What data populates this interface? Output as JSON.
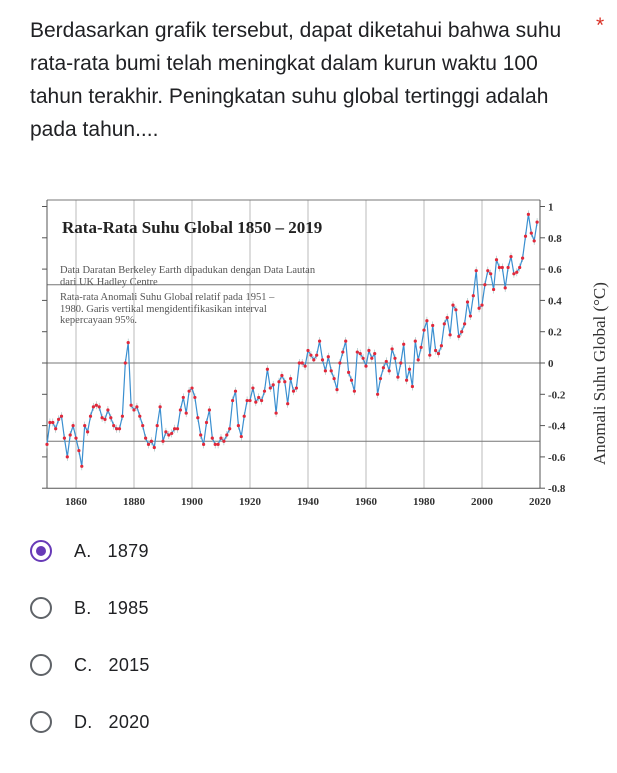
{
  "question": {
    "text": "Berdasarkan grafik tersebut, dapat diketahui bahwa suhu rata-rata bumi telah meningkat dalam kurun waktu 100 tahun terakhir. Peningkatan suhu global tertinggi adalah pada tahun....",
    "required_mark": "*"
  },
  "options": [
    {
      "label": "A.   1879",
      "selected": true
    },
    {
      "label": "B.   1985",
      "selected": false
    },
    {
      "label": "C.   2015",
      "selected": false
    },
    {
      "label": "D.   2020",
      "selected": false
    }
  ],
  "colors": {
    "accent": "#673ab7",
    "line": "#3a8fd0",
    "marker": "#e0283a",
    "required": "#d93025"
  },
  "chart_data": {
    "type": "line",
    "title": "Rata-Rata Suhu Global 1850 – 2019",
    "subtitle": "Data Daratan Berkeley Earth dipadukan dengan Data Lautan dari UK Hadley Centre",
    "note": "Rata-rata Anomali Suhu Global relatif pada 1951 – 1980. Garis vertikal mengidentifikasikan interval kepercayaan 95%.",
    "ylabel": "Anomali Suhu Global (°C)",
    "xlabel": "",
    "xlim": [
      1850,
      2020
    ],
    "ylim": [
      -0.8,
      1
    ],
    "xticks": [
      "1860",
      "1880",
      "1900",
      "1920",
      "1940",
      "1960",
      "1980",
      "2000",
      "2020"
    ],
    "yticks": [
      "1",
      "0.8",
      "0.6",
      "0.4",
      "0.2",
      "0",
      "-0.2",
      "-0.4",
      "-0.6",
      "-0.8"
    ],
    "x_start": 1850,
    "values": [
      -0.52,
      -0.38,
      -0.38,
      -0.42,
      -0.36,
      -0.34,
      -0.48,
      -0.6,
      -0.46,
      -0.4,
      -0.48,
      -0.56,
      -0.66,
      -0.4,
      -0.44,
      -0.34,
      -0.28,
      -0.27,
      -0.28,
      -0.35,
      -0.36,
      -0.3,
      -0.35,
      -0.4,
      -0.42,
      -0.42,
      -0.34,
      0.0,
      0.13,
      -0.27,
      -0.3,
      -0.28,
      -0.34,
      -0.4,
      -0.48,
      -0.52,
      -0.5,
      -0.54,
      -0.4,
      -0.28,
      -0.5,
      -0.44,
      -0.46,
      -0.45,
      -0.42,
      -0.42,
      -0.3,
      -0.22,
      -0.32,
      -0.18,
      -0.16,
      -0.22,
      -0.35,
      -0.46,
      -0.52,
      -0.38,
      -0.3,
      -0.48,
      -0.52,
      -0.52,
      -0.48,
      -0.5,
      -0.46,
      -0.42,
      -0.24,
      -0.18,
      -0.4,
      -0.47,
      -0.34,
      -0.24,
      -0.24,
      -0.16,
      -0.25,
      -0.22,
      -0.24,
      -0.18,
      -0.04,
      -0.16,
      -0.14,
      -0.32,
      -0.12,
      -0.08,
      -0.12,
      -0.26,
      -0.1,
      -0.18,
      -0.16,
      0.0,
      0.0,
      -0.02,
      0.08,
      0.05,
      0.02,
      0.05,
      0.14,
      0.02,
      -0.05,
      0.04,
      -0.05,
      -0.1,
      -0.17,
      0.0,
      0.07,
      0.14,
      -0.06,
      -0.11,
      -0.18,
      0.07,
      0.06,
      0.03,
      -0.02,
      0.08,
      0.03,
      0.06,
      -0.2,
      -0.1,
      -0.03,
      0.01,
      -0.05,
      0.09,
      0.03,
      -0.09,
      0.0,
      0.12,
      -0.11,
      -0.04,
      -0.15,
      0.14,
      0.02,
      0.1,
      0.21,
      0.27,
      0.05,
      0.24,
      0.08,
      0.06,
      0.11,
      0.25,
      0.29,
      0.18,
      0.37,
      0.34,
      0.17,
      0.2,
      0.25,
      0.39,
      0.3,
      0.43,
      0.59,
      0.35,
      0.37,
      0.5,
      0.59,
      0.57,
      0.47,
      0.66,
      0.61,
      0.61,
      0.48,
      0.61,
      0.68,
      0.57,
      0.58,
      0.61,
      0.67,
      0.81,
      0.95,
      0.83,
      0.78,
      0.9
    ],
    "grid": true,
    "legend": "none"
  }
}
